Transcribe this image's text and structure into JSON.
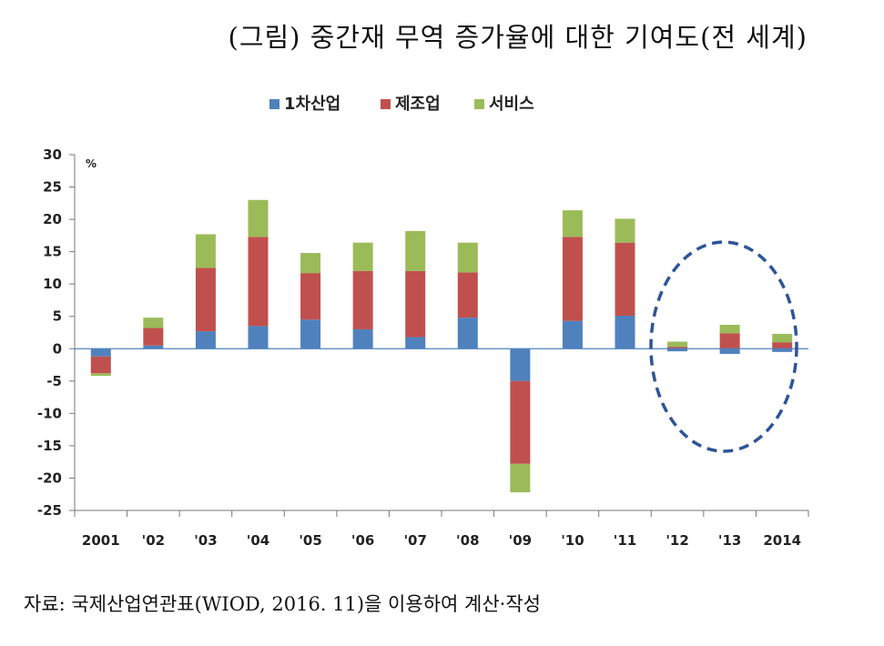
{
  "title": "(그림) 중간재 무역 증가율에 대한 기여도(전 세계)",
  "source": "자료: 국제산업연관표(WIOD, 2016. 11)을 이용하여 계산·작성",
  "chart_data": {
    "type": "bar",
    "stacked": true,
    "title": "(그림) 중간재 무역 증가율에 대한 기여도(전 세계)",
    "unit_label": "%",
    "categories": [
      "2001",
      "'02",
      "'03",
      "'04",
      "'05",
      "'06",
      "'07",
      "'08",
      "'09",
      "'10",
      "'11",
      "'12",
      "'13",
      "2014"
    ],
    "series": [
      {
        "name": "1차산업",
        "color": "#4F81BD",
        "values": [
          -1.2,
          0.5,
          2.7,
          3.5,
          4.5,
          3.0,
          1.8,
          4.8,
          -5.0,
          4.3,
          5.1,
          -0.4,
          -0.8,
          -0.5
        ]
      },
      {
        "name": "제조업",
        "color": "#C0504D",
        "values": [
          -2.6,
          2.7,
          9.8,
          13.8,
          7.2,
          9.0,
          10.2,
          7.0,
          -12.8,
          13.0,
          11.3,
          0.3,
          2.4,
          1.0
        ]
      },
      {
        "name": "서비스",
        "color": "#9BBB59",
        "values": [
          -0.4,
          1.6,
          5.2,
          5.7,
          3.1,
          4.4,
          6.2,
          4.6,
          -4.4,
          4.1,
          3.7,
          0.8,
          1.3,
          1.3
        ]
      }
    ],
    "ylim": [
      -25,
      30
    ],
    "ytick_step": 5,
    "legend_position": "top",
    "annotation": "dashed ellipse highlighting '12–2014"
  }
}
